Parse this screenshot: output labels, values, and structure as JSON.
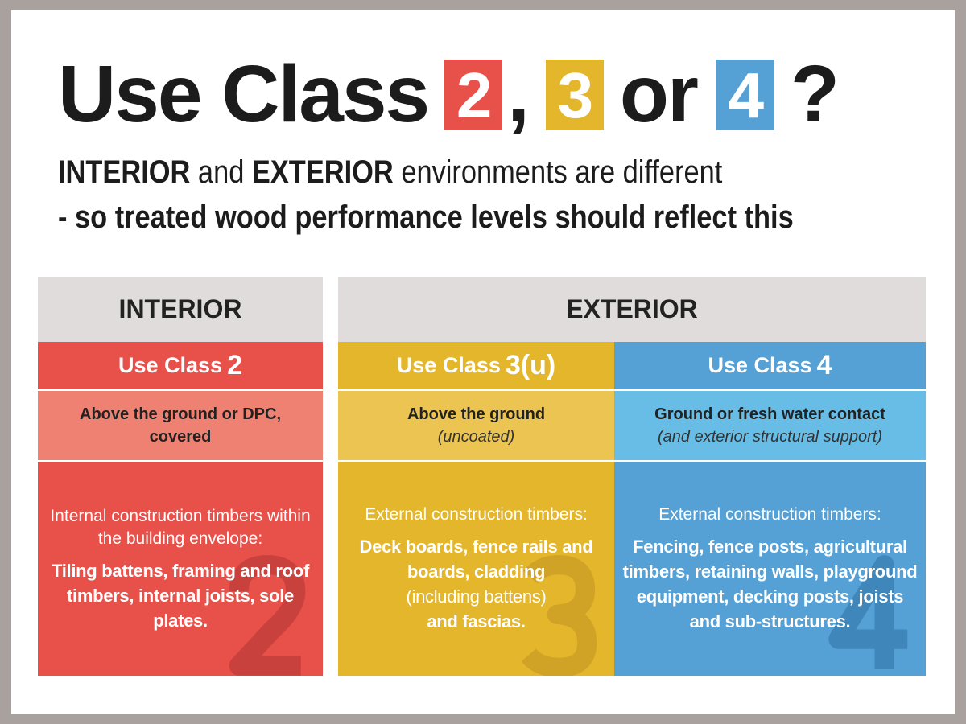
{
  "title": {
    "prefix": "Use Class",
    "n2": "2",
    "sep1": ",",
    "n3": "3",
    "or": "or",
    "n4": "4",
    "q": "?"
  },
  "subtitle": {
    "interior": "INTERIOR",
    "and": "and",
    "exterior": "EXTERIOR",
    "line1_rest": "environments are different",
    "line2": "- so treated wood performance levels should reflect this"
  },
  "colors": {
    "red": "#e8504a",
    "red_light": "#ef8172",
    "yellow": "#e4b62b",
    "yellow_light": "#ecc452",
    "blue": "#55a0d4",
    "blue_light": "#67bde6",
    "header_gray": "#dfdcdb",
    "frame": "#a9a19d"
  },
  "headers": {
    "interior": "INTERIOR",
    "exterior": "EXTERIOR"
  },
  "columns": [
    {
      "class_label": "Use Class",
      "class_num": "2",
      "desc": "Above the ground or DPC, covered",
      "desc_note": "",
      "lead": "Internal construction timbers within the building envelope:",
      "items": "Tiling battens, framing and roof timbers, internal joists, sole plates.",
      "watermark": "2"
    },
    {
      "class_label": "Use Class",
      "class_num": "3(u)",
      "desc": "Above the ground",
      "desc_note": "(uncoated)",
      "lead": "External construction timbers:",
      "items": "Deck boards, fence rails and boards, cladding",
      "items_note": "(including battens)",
      "items_end": "and fascias.",
      "watermark": "3"
    },
    {
      "class_label": "Use Class",
      "class_num": "4",
      "desc": "Ground or fresh water contact",
      "desc_note": "(and exterior structural support)",
      "lead": "External construction timbers:",
      "items": "Fencing, fence posts, agricultural timbers, retaining walls, playground equipment, decking posts, joists and sub-structures.",
      "watermark": "4"
    }
  ]
}
